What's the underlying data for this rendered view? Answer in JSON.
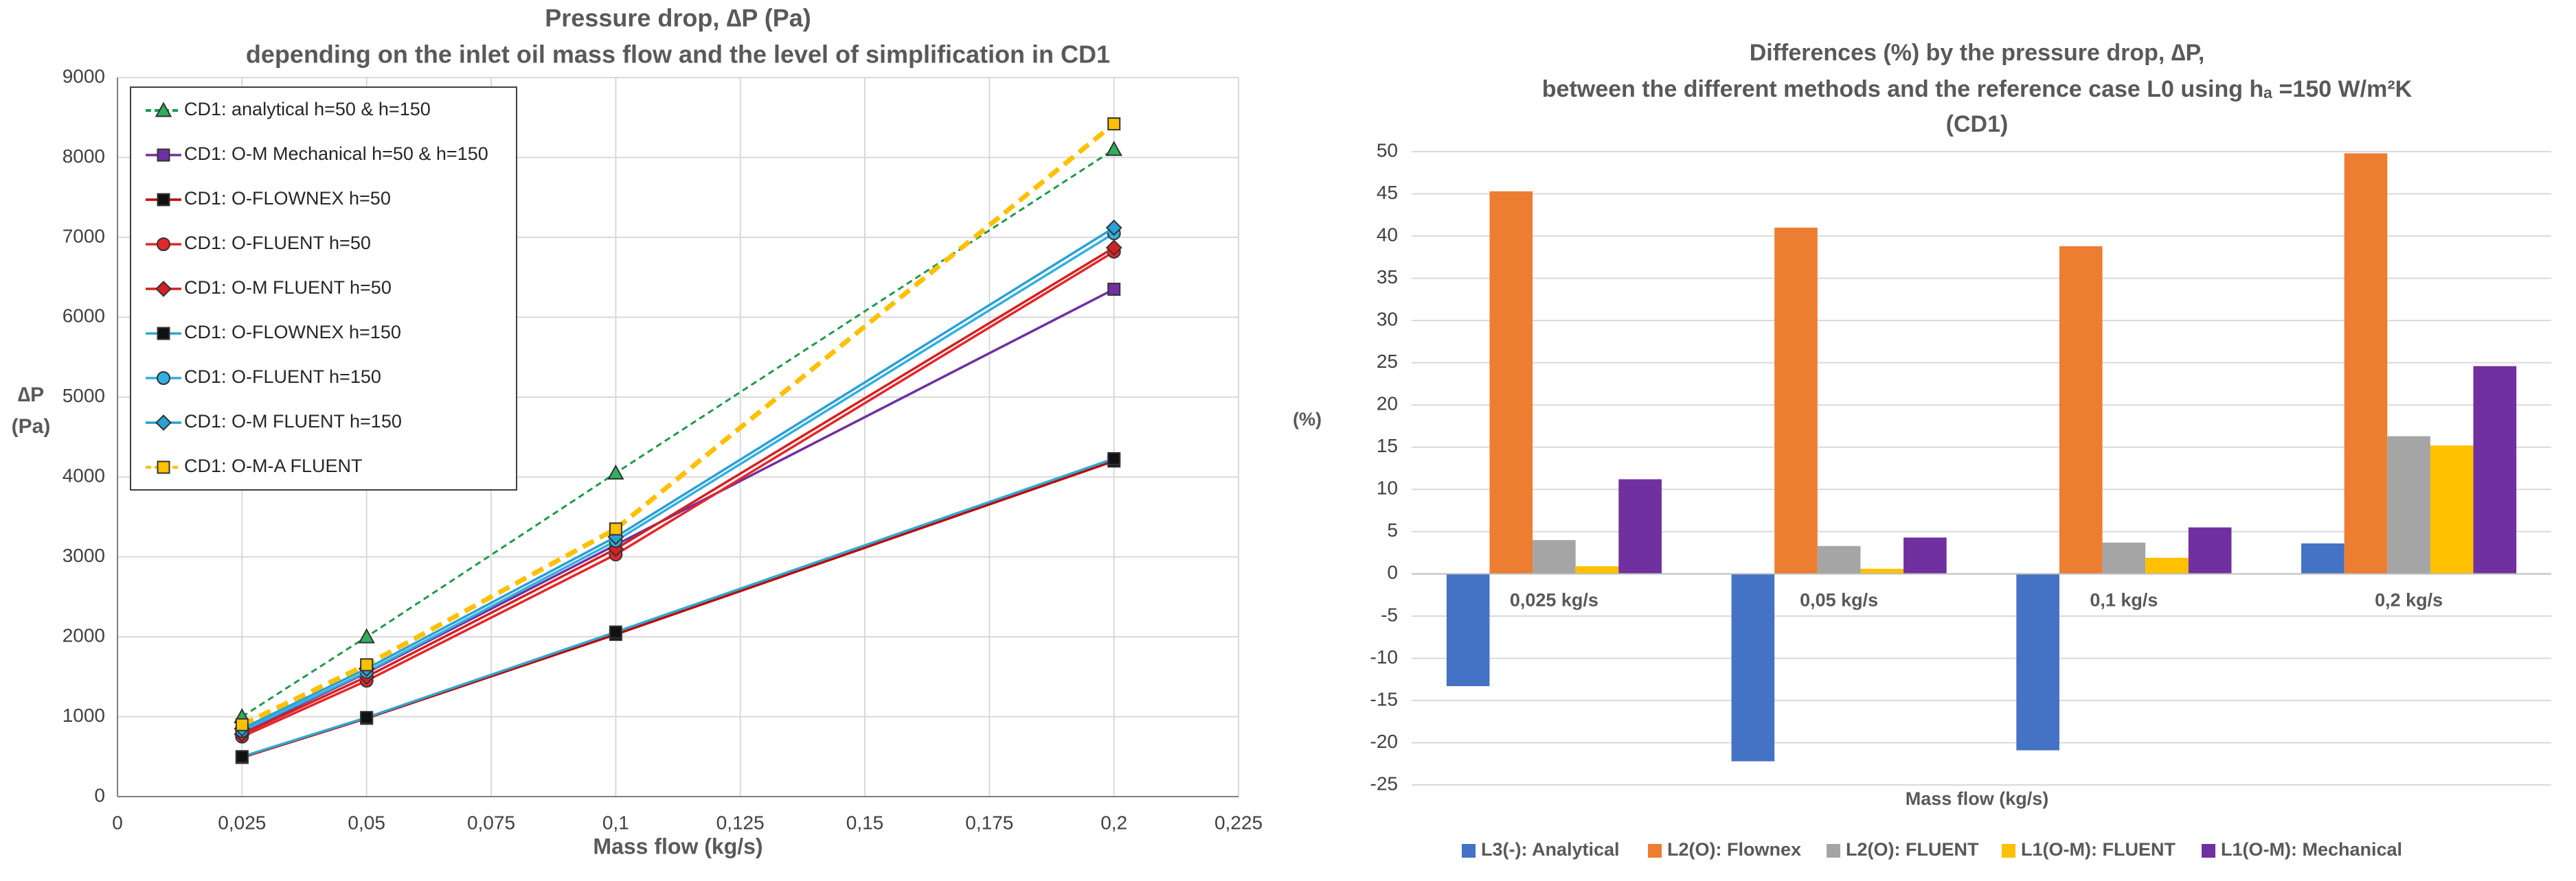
{
  "chart_data": [
    {
      "type": "line",
      "title": [
        "Pressure drop, ∆P (Pa)",
        "depending on the inlet oil mass flow  and the level of simplification in CD1"
      ],
      "x_label": "Mass flow (kg/s)",
      "y_label": [
        "∆P",
        "(Pa)"
      ],
      "x": [
        0.025,
        0.05,
        0.1,
        0.2
      ],
      "xlim": [
        0,
        0.225
      ],
      "xticks": [
        0,
        {
          "value": 0.025,
          "label": "0,025"
        },
        {
          "value": 0.05,
          "label": "0,05"
        },
        {
          "value": 0.075,
          "label": "0,075"
        },
        {
          "value": 0.1,
          "label": "0,1"
        },
        {
          "value": 0.125,
          "label": "0,125"
        },
        {
          "value": 0.15,
          "label": "0,15"
        },
        {
          "value": 0.175,
          "label": "0,175"
        },
        {
          "value": 0.2,
          "label": "0,2"
        },
        {
          "value": 0.225,
          "label": "0,225"
        }
      ],
      "ylim": [
        0,
        9000
      ],
      "yticks": [
        0,
        1000,
        2000,
        3000,
        4000,
        5000,
        6000,
        7000,
        8000,
        9000
      ],
      "grid": true,
      "legend": "upper left",
      "series": [
        {
          "name": "CD1: analytical h=50 & h=150",
          "color": "#1e9a4a",
          "marker": "triangle",
          "marker_color": "#2eb05a",
          "dashed": true,
          "values": [
            1000,
            2000,
            4050,
            8100
          ]
        },
        {
          "name": "CD1: O-M Mechanical h=50 & h=150",
          "color": "#7030a0",
          "marker": "square",
          "marker_color": "#7030a0",
          "dashed": false,
          "values": [
            800,
            1550,
            3150,
            6350
          ]
        },
        {
          "name": "CD1: O-FLOWNEX h=50",
          "color": "#c00000",
          "marker": "square",
          "marker_color": "#111111",
          "dashed": false,
          "values": [
            490,
            980,
            2030,
            4200
          ]
        },
        {
          "name": "CD1: O-FLUENT h=50",
          "color": "#e6262a",
          "marker": "circle",
          "marker_color": "#e6262a",
          "dashed": false,
          "values": [
            750,
            1450,
            3030,
            6820
          ]
        },
        {
          "name": "CD1: O-M FLUENT h=50",
          "color": "#d42020",
          "marker": "diamond",
          "marker_color": "#d42020",
          "dashed": false,
          "values": [
            780,
            1500,
            3100,
            6870
          ]
        },
        {
          "name": "CD1: O-FLOWNEX h=150",
          "color": "#2fa8d0",
          "marker": "square",
          "marker_color": "#111111",
          "dashed": false,
          "values": [
            500,
            990,
            2060,
            4230
          ]
        },
        {
          "name": "CD1: O-FLUENT h=150",
          "color": "#33aee0",
          "marker": "circle",
          "marker_color": "#33aee0",
          "dashed": false,
          "values": [
            820,
            1560,
            3200,
            7050
          ]
        },
        {
          "name": "CD1: O-M FLUENT h=150",
          "color": "#29a0d6",
          "marker": "diamond",
          "marker_color": "#29a0d6",
          "dashed": false,
          "values": [
            850,
            1600,
            3250,
            7120
          ]
        },
        {
          "name": "CD1: O-M-A FLUENT",
          "color": "#ffc000",
          "marker": "square",
          "marker_color": "#ffc000",
          "dashed": true,
          "values": [
            900,
            1650,
            3350,
            8420
          ]
        }
      ]
    },
    {
      "type": "bar",
      "title": [
        "Differences (%) by the pressure drop, ∆P,",
        "between the different methods and the reference case L0 using hₐ =150 W/m²K",
        "(CD1)"
      ],
      "x_label": "Mass flow (kg/s)",
      "y_label": "(%)",
      "categories": [
        "0,025 kg/s",
        "0,05 kg/s",
        "0,1 kg/s",
        "0,2 kg/s"
      ],
      "ylim": [
        -25,
        50
      ],
      "yticks": [
        -25,
        -20,
        -15,
        -10,
        -5,
        0,
        5,
        10,
        15,
        20,
        25,
        30,
        35,
        40,
        45,
        50
      ],
      "grid": true,
      "legend": "bottom",
      "series": [
        {
          "name": "L3(-): Analytical",
          "color": "#4472c4",
          "values": [
            -13.3,
            -22.2,
            -20.9,
            3.6
          ]
        },
        {
          "name": "L2(O): Flownex",
          "color": "#ed7d31",
          "values": [
            45.3,
            41,
            38.8,
            49.8
          ]
        },
        {
          "name": "L2(O): FLUENT",
          "color": "#a5a5a5",
          "values": [
            4,
            3.3,
            3.7,
            16.3
          ]
        },
        {
          "name": "L1(O-M): FLUENT",
          "color": "#ffc000",
          "values": [
            0.9,
            0.6,
            1.9,
            15.2
          ]
        },
        {
          "name": "L1(O-M): Mechanical",
          "color": "#7030a0",
          "values": [
            11.2,
            4.3,
            5.5,
            24.6
          ]
        }
      ]
    }
  ]
}
